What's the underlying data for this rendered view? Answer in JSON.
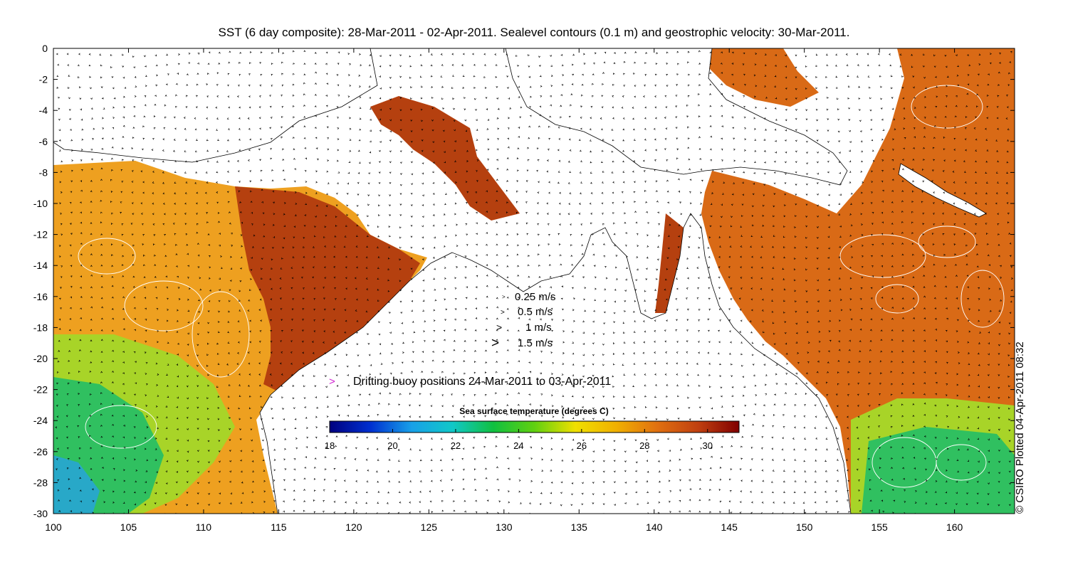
{
  "title": "SST (6 day composite): 28-Mar-2011 - 02-Apr-2011. Sealevel contours (0.1 m) and geostrophic velocity: 30-Mar-2011.",
  "credit": "© CSIRO Plotted 04-Apr-2011 08:32",
  "axes": {
    "x_ticks": [
      "100",
      "105",
      "110",
      "115",
      "120",
      "125",
      "130",
      "135",
      "140",
      "145",
      "150",
      "155",
      "160"
    ],
    "y_ticks": [
      "0",
      "-2",
      "-4",
      "-6",
      "-8",
      "-10",
      "-12",
      "-14",
      "-16",
      "-18",
      "-20",
      "-22",
      "-24",
      "-26",
      "-28",
      "-30"
    ],
    "lon_range": [
      100,
      164
    ],
    "lat_range": [
      -30,
      0
    ]
  },
  "velocity_legend": [
    {
      "label": "0.25 m/s",
      "speed": 0.25
    },
    {
      "label": "0.5 m/s",
      "speed": 0.5
    },
    {
      "label": "1 m/s",
      "speed": 1
    },
    {
      "label": "1.5 m/s",
      "speed": 1.5
    }
  ],
  "buoy_legend": {
    "symbol": ">",
    "text": "Drifting buoy positions 24-Mar-2011 to 03-Apr-2011",
    "color": "#d020d0"
  },
  "colorbar": {
    "title": "Sea surface temperature (degrees C)",
    "range": [
      18,
      31
    ],
    "ticks": [
      "18",
      "20",
      "22",
      "24",
      "26",
      "28",
      "30"
    ],
    "colors": [
      "#00007f",
      "#0030d0",
      "#18a0e8",
      "#10c8c8",
      "#10c040",
      "#60d010",
      "#f0e000",
      "#f0b000",
      "#e07010",
      "#c04010",
      "#800000"
    ]
  },
  "colors": {
    "warm_ocean": "#d96a16",
    "hot_ocean": "#b5400f",
    "mid_ocean": "#eea020",
    "cool_ocean": "#a8d428",
    "cold_ocean": "#30c060",
    "coldest_ocean": "#28a8c8",
    "land": "#ffffff"
  }
}
